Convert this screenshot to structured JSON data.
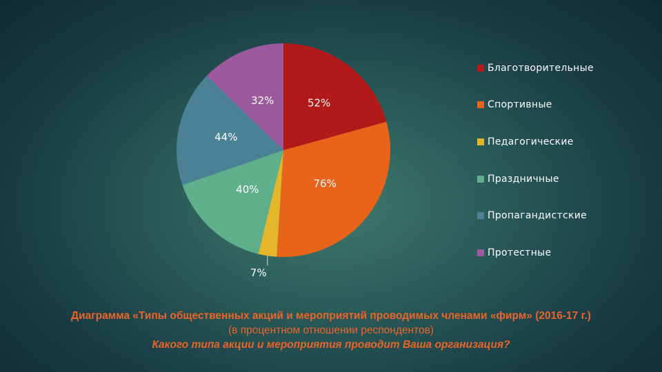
{
  "chart_data": {
    "type": "pie",
    "categories": [
      "Благотворительные",
      "Спортивные",
      "Педагогические",
      "Праздничные",
      "Пропагандистские",
      "Протестные"
    ],
    "values": [
      52,
      76,
      7,
      40,
      44,
      32
    ],
    "data_labels": [
      "52%",
      "76%",
      "7%",
      "40%",
      "44%",
      "32%"
    ],
    "colors": [
      "#b21a1a",
      "#e8641a",
      "#e3b62b",
      "#5fae8c",
      "#4a8194",
      "#9b5a9b"
    ],
    "legend_position": "right"
  },
  "caption": {
    "line1": "Диаграмма «Типы общественных акций и мероприятий проводимых членами «фирм» (2016-17 г.)",
    "line2": "(в процентном отношении респондентов)",
    "line3": "Какого типа акции и мероприятия проводит Ваша организация?"
  }
}
